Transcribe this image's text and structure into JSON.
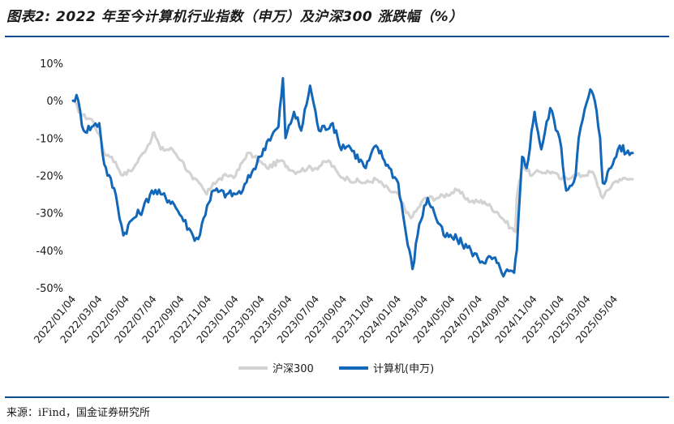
{
  "figure": {
    "title": "图表2: 2022 年至今计算机行业指数（申万）及沪深300 涨跌幅（%）",
    "source": "来源：iFind，国金证券研究所"
  },
  "colors": {
    "accent": "#0e4c8c"
  },
  "chart_data": {
    "type": "line",
    "title": "",
    "xlabel": "",
    "ylabel": "",
    "y_unit": "%",
    "ylim": [
      -50,
      10
    ],
    "yticks": [
      10,
      0,
      -10,
      -20,
      -30,
      -40,
      -50
    ],
    "ytick_labels": [
      "10%",
      "0%",
      "-10%",
      "-20%",
      "-30%",
      "-40%",
      "-50%"
    ],
    "xlim": [
      "2022-01-04",
      "2025-06-13"
    ],
    "xtick_labels": [
      "2022/01/04",
      "2022/03/04",
      "2022/05/04",
      "2022/07/04",
      "2022/09/04",
      "2022/11/04",
      "2023/01/04",
      "2023/03/04",
      "2023/05/04",
      "2023/07/04",
      "2023/09/04",
      "2023/11/04",
      "2024/01/04",
      "2024/03/04",
      "2024/05/04",
      "2024/07/04",
      "2024/09/04",
      "2024/11/04",
      "2025/01/04",
      "2025/03/04",
      "2025/05/04"
    ],
    "grid": false,
    "legend_position": "bottom",
    "series": [
      {
        "name": "沪深300",
        "color": "#d3d3d3",
        "points": [
          [
            "2022-01-04",
            0
          ],
          [
            "2022-01-25",
            -4
          ],
          [
            "2022-02-15",
            -5
          ],
          [
            "2022-03-04",
            -9
          ],
          [
            "2022-03-15",
            -14
          ],
          [
            "2022-04-01",
            -15
          ],
          [
            "2022-04-26",
            -20
          ],
          [
            "2022-05-20",
            -18
          ],
          [
            "2022-06-10",
            -14
          ],
          [
            "2022-06-30",
            -10
          ],
          [
            "2022-07-05",
            -8.5
          ],
          [
            "2022-07-20",
            -13
          ],
          [
            "2022-08-15",
            -13
          ],
          [
            "2022-09-05",
            -16
          ],
          [
            "2022-09-30",
            -21
          ],
          [
            "2022-10-14",
            -22
          ],
          [
            "2022-10-31",
            -25
          ],
          [
            "2022-11-15",
            -22
          ],
          [
            "2022-12-15",
            -20
          ],
          [
            "2023-01-04",
            -20
          ],
          [
            "2023-01-30",
            -14
          ],
          [
            "2023-02-15",
            -15
          ],
          [
            "2023-03-15",
            -18
          ],
          [
            "2023-04-15",
            -16
          ],
          [
            "2023-05-15",
            -19
          ],
          [
            "2023-06-15",
            -18
          ],
          [
            "2023-07-03",
            -18
          ],
          [
            "2023-07-31",
            -16
          ],
          [
            "2023-08-25",
            -20
          ],
          [
            "2023-09-15",
            -21
          ],
          [
            "2023-10-23",
            -22
          ],
          [
            "2023-11-15",
            -21
          ],
          [
            "2023-12-15",
            -24
          ],
          [
            "2024-01-04",
            -25
          ],
          [
            "2024-01-22",
            -30
          ],
          [
            "2024-02-05",
            -31
          ],
          [
            "2024-03-04",
            -26
          ],
          [
            "2024-04-01",
            -26
          ],
          [
            "2024-05-15",
            -24
          ],
          [
            "2024-06-15",
            -27
          ],
          [
            "2024-07-15",
            -27
          ],
          [
            "2024-08-15",
            -30
          ],
          [
            "2024-09-13",
            -34
          ],
          [
            "2024-09-23",
            -35
          ],
          [
            "2024-09-26",
            -26
          ],
          [
            "2024-10-08",
            -17
          ],
          [
            "2024-10-30",
            -20
          ],
          [
            "2024-11-15",
            -19
          ],
          [
            "2024-12-15",
            -19
          ],
          [
            "2025-01-04",
            -21
          ],
          [
            "2025-01-31",
            -20
          ],
          [
            "2025-02-20",
            -20
          ],
          [
            "2025-03-15",
            -19
          ],
          [
            "2025-04-07",
            -26
          ],
          [
            "2025-04-30",
            -22
          ],
          [
            "2025-05-15",
            -21
          ],
          [
            "2025-06-13",
            -21
          ]
        ]
      },
      {
        "name": "计算机(申万)",
        "color": "#1367b8",
        "points": [
          [
            "2022-01-04",
            0
          ],
          [
            "2022-01-12",
            1.5
          ],
          [
            "2022-01-28",
            -8
          ],
          [
            "2022-02-15",
            -7
          ],
          [
            "2022-03-04",
            -6
          ],
          [
            "2022-03-15",
            -17
          ],
          [
            "2022-04-10",
            -25
          ],
          [
            "2022-04-27",
            -36
          ],
          [
            "2022-05-15",
            -32
          ],
          [
            "2022-06-10",
            -29
          ],
          [
            "2022-06-30",
            -24
          ],
          [
            "2022-07-20",
            -25
          ],
          [
            "2022-08-15",
            -27
          ],
          [
            "2022-09-05",
            -31
          ],
          [
            "2022-09-30",
            -36
          ],
          [
            "2022-10-12",
            -37
          ],
          [
            "2022-11-01",
            -28
          ],
          [
            "2022-11-15",
            -24
          ],
          [
            "2022-12-15",
            -25
          ],
          [
            "2023-01-04",
            -25
          ],
          [
            "2023-01-20",
            -24
          ],
          [
            "2023-02-10",
            -19
          ],
          [
            "2023-02-28",
            -15
          ],
          [
            "2023-03-15",
            -11
          ],
          [
            "2023-04-10",
            -7
          ],
          [
            "2023-04-20",
            6
          ],
          [
            "2023-04-26",
            -10
          ],
          [
            "2023-05-15",
            -3
          ],
          [
            "2023-05-31",
            -8
          ],
          [
            "2023-06-20",
            4
          ],
          [
            "2023-07-10",
            -8
          ],
          [
            "2023-08-10",
            -6
          ],
          [
            "2023-08-25",
            -12
          ],
          [
            "2023-09-15",
            -12
          ],
          [
            "2023-10-23",
            -18
          ],
          [
            "2023-11-15",
            -12
          ],
          [
            "2023-12-15",
            -18
          ],
          [
            "2024-01-04",
            -22
          ],
          [
            "2024-01-22",
            -36
          ],
          [
            "2024-02-05",
            -45
          ],
          [
            "2024-02-20",
            -33
          ],
          [
            "2024-03-10",
            -26
          ],
          [
            "2024-03-25",
            -30
          ],
          [
            "2024-04-15",
            -36
          ],
          [
            "2024-05-15",
            -37
          ],
          [
            "2024-06-15",
            -40
          ],
          [
            "2024-07-10",
            -43
          ],
          [
            "2024-08-05",
            -42
          ],
          [
            "2024-08-23",
            -46
          ],
          [
            "2024-09-20",
            -46
          ],
          [
            "2024-09-26",
            -40
          ],
          [
            "2024-10-08",
            -15
          ],
          [
            "2024-10-18",
            -18
          ],
          [
            "2024-11-05",
            -3
          ],
          [
            "2024-11-20",
            -13
          ],
          [
            "2024-12-10",
            -2
          ],
          [
            "2024-12-31",
            -10
          ],
          [
            "2025-01-15",
            -24
          ],
          [
            "2025-02-05",
            -20
          ],
          [
            "2025-02-12",
            -10
          ],
          [
            "2025-02-21",
            -5
          ],
          [
            "2025-03-10",
            3
          ],
          [
            "2025-03-20",
            0
          ],
          [
            "2025-04-01",
            -10
          ],
          [
            "2025-04-07",
            -22
          ],
          [
            "2025-04-25",
            -18
          ],
          [
            "2025-05-15",
            -12
          ],
          [
            "2025-05-30",
            -14
          ],
          [
            "2025-06-13",
            -14
          ]
        ]
      }
    ]
  }
}
